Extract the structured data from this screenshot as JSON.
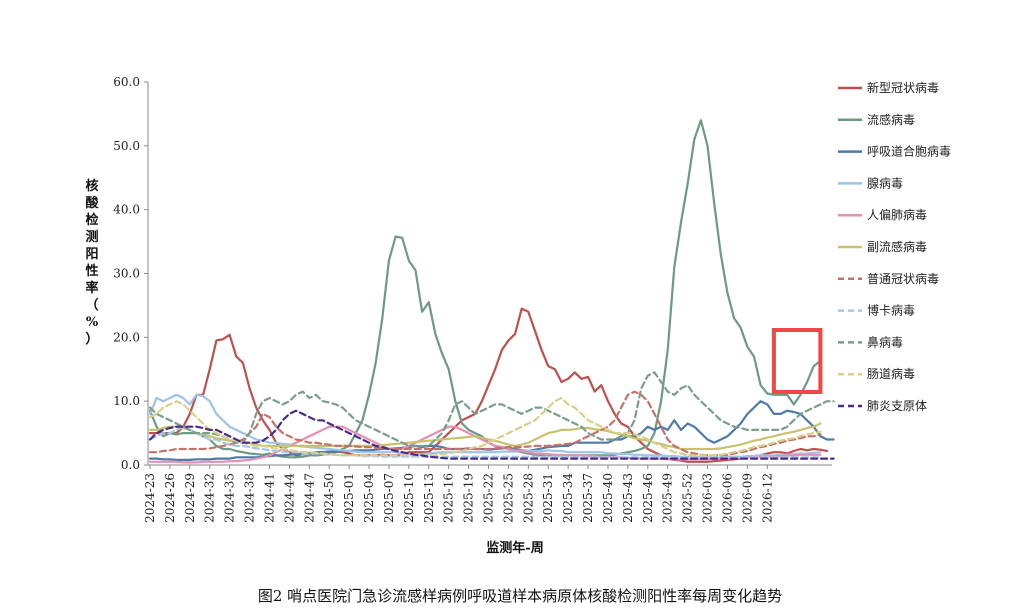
{
  "chart_data": {
    "type": "line",
    "title": "图2  哨点医院门急诊流感样病例呼吸道样本病原体核酸检测阳性率每周变化趋势",
    "xlabel": "监测年-周",
    "ylabel": "核酸检测阳性率（%）",
    "ylim": [
      0,
      60
    ],
    "yticks": [
      "0.0",
      "10.0",
      "20.0",
      "30.0",
      "40.0",
      "50.0",
      "60.0"
    ],
    "x_tick_labels": [
      "2024-23",
      "2024-26",
      "2024-29",
      "2024-32",
      "2024-35",
      "2024-38",
      "2024-41",
      "2024-44",
      "2024-47",
      "2024-50",
      "2025-01",
      "2025-04",
      "2025-07",
      "2025-10",
      "2025-13",
      "2025-16",
      "2025-19",
      "2025-22",
      "2025-25",
      "2025-28",
      "2025-31",
      "2025-34",
      "2025-37",
      "2025-40",
      "2025-43",
      "2025-46",
      "2025-49",
      "2025-52",
      "2026-03",
      "2026-06",
      "2026-09",
      "2026-12"
    ],
    "grid": false,
    "legend_position": "right",
    "highlight_box": {
      "from_week_index": 94,
      "to_week_index": 101,
      "color": "#f04848"
    },
    "series": [
      {
        "name": "新型冠状病毒",
        "color": "#c0504d",
        "dash": "solid",
        "values": [
          5,
          5,
          5,
          5,
          5,
          6,
          8,
          11,
          11,
          15,
          19.5,
          19.7,
          20.4,
          17,
          16,
          12,
          9,
          7,
          5.5,
          3.5,
          2.5,
          2,
          1.5,
          1.3,
          1.5,
          1.8,
          2,
          2.1,
          2.1,
          2,
          1.8,
          1.5,
          1.5,
          1.5,
          1.5,
          1.6,
          1.5,
          1.5,
          1.5,
          2,
          2,
          2,
          2,
          3,
          4,
          5,
          6,
          7,
          7.5,
          8,
          10,
          12.5,
          15,
          18,
          19.5,
          20.5,
          24.5,
          24,
          21,
          18,
          15.5,
          15,
          13,
          13.5,
          14.5,
          13.5,
          13.8,
          11.5,
          12.5,
          10,
          8,
          6.5,
          6,
          4.5,
          3.5,
          2.5,
          2,
          1.5,
          1,
          0.8,
          0.7,
          0.5,
          0.5,
          0.5,
          0.5,
          0.6,
          0.7,
          0.8,
          0.9,
          1,
          1.2,
          1.4,
          1.5,
          1.8,
          2,
          2,
          1.8,
          2.2,
          2.5,
          2.3,
          2.5,
          2.4,
          2.2
        ]
      },
      {
        "name": "流感病毒",
        "color": "#6d9a83",
        "dash": "solid",
        "values": [
          8.5,
          6,
          4.5,
          5,
          4.8,
          5,
          5,
          5,
          4.5,
          4,
          3,
          2.5,
          2.5,
          2.2,
          2,
          1.8,
          1.7,
          1.6,
          1.8,
          1.5,
          1.3,
          1.2,
          1.2,
          1.3,
          1.5,
          1.5,
          1.6,
          1.8,
          2,
          2.5,
          3,
          5,
          7,
          11,
          16,
          23,
          32,
          35.8,
          35.6,
          32,
          30.5,
          24,
          25.5,
          20.5,
          17.5,
          15,
          10,
          6.5,
          5.5,
          5,
          4.5,
          3.5,
          3,
          2.8,
          2.5,
          2.2,
          2,
          1.8,
          1.6,
          1.5,
          1.5,
          1.5,
          1.5,
          1.5,
          1.5,
          1.5,
          1.5,
          1.5,
          1.5,
          1.5,
          1.6,
          1.8,
          2,
          2.2,
          2.5,
          3,
          5,
          10,
          18,
          31,
          38,
          44,
          51,
          54,
          50,
          41,
          33,
          27,
          23,
          21.5,
          18.5,
          17,
          12.5,
          11.2,
          11,
          11,
          11,
          9.5,
          11,
          13,
          15.5,
          16.3
        ]
      },
      {
        "name": "呼吸道合胞病毒",
        "color": "#4f7aa7",
        "dash": "solid",
        "values": [
          1,
          1,
          0.9,
          0.9,
          0.8,
          0.8,
          0.8,
          0.9,
          0.9,
          0.9,
          1,
          1,
          1,
          1.2,
          1.2,
          1.2,
          1.2,
          1.3,
          1.4,
          1.5,
          1.5,
          1.6,
          1.7,
          1.8,
          1.9,
          2,
          2,
          2.1,
          2.1,
          2.2,
          2.2,
          2.3,
          2.3,
          2.3,
          2.4,
          2.5,
          2.5,
          2.6,
          2.7,
          2.8,
          3,
          2.8,
          3,
          3,
          2.8,
          2.5,
          2.5,
          2.5,
          2.6,
          2.5,
          2.5,
          2.4,
          2.5,
          2.6,
          2.7,
          2.5,
          2.3,
          2.2,
          2.4,
          2.6,
          2.8,
          2.9,
          3,
          3,
          3.5,
          3.5,
          3.5,
          3.5,
          3.5,
          3.5,
          4,
          4,
          4.5,
          4.5,
          5,
          6,
          5.5,
          6,
          5.5,
          7,
          5.5,
          6.5,
          6,
          5,
          4,
          3.5,
          4,
          4.5,
          5.5,
          6.5,
          8,
          9,
          10,
          9.5,
          8,
          8,
          8.5,
          8.3,
          8,
          7,
          6,
          4.5,
          4,
          4
        ]
      },
      {
        "name": "腺病毒",
        "color": "#9dc3e6",
        "dash": "solid",
        "values": [
          8,
          10.5,
          10,
          10.5,
          11,
          10.5,
          9.5,
          11,
          10.8,
          10,
          8,
          7,
          6,
          5.5,
          5,
          4.5,
          4,
          3.8,
          3.5,
          3.5,
          3.3,
          3.2,
          3,
          2.9,
          2.8,
          2.7,
          2.6,
          2.5,
          2.4,
          2.3,
          2.2,
          2.1,
          2,
          2,
          2,
          2,
          2,
          2,
          1.8,
          1.7,
          1.6,
          1.7,
          1.8,
          1.9,
          2,
          2,
          2,
          2,
          2,
          2,
          2,
          2,
          2,
          2.1,
          2.1,
          2.1,
          2.2,
          2.2,
          2.2,
          2.2,
          2.3,
          2.2,
          2.2,
          2,
          2,
          2,
          2,
          2,
          2,
          1.8,
          1.8,
          1.7,
          1.7,
          1.6,
          1.6,
          1.5,
          1.5,
          1.5,
          1.4,
          1.4,
          1.3,
          1.3,
          1.3,
          1.2,
          1.2,
          1.2,
          1.2,
          1.3,
          1.3,
          1.3,
          1.4,
          1.4,
          1.5,
          1.5,
          1.5,
          1.6,
          1.6,
          1.7,
          1.8,
          1.8,
          1.9,
          2
        ]
      },
      {
        "name": "人偏肺病毒",
        "color": "#e58fb3",
        "dash": "solid",
        "values": [
          0.5,
          0.5,
          0.5,
          0.5,
          0.5,
          0.4,
          0.4,
          0.4,
          0.5,
          0.5,
          0.5,
          0.5,
          0.6,
          0.6,
          0.7,
          0.8,
          1,
          1.2,
          1.5,
          2,
          2.5,
          3,
          3.5,
          4,
          4.5,
          5,
          5.5,
          6,
          6,
          6,
          5.5,
          5,
          4.5,
          4,
          3.5,
          3,
          2.5,
          2.5,
          2.5,
          3,
          3.5,
          4,
          4.5,
          5,
          5.5,
          6,
          6,
          5.5,
          5,
          4.5,
          4,
          3.5,
          3,
          2.8,
          2.5,
          2.3,
          2.2,
          2,
          1.8,
          1.8,
          1.7,
          1.6,
          1.6,
          1.5,
          1.5,
          1.5,
          1.4,
          1.4,
          1.3,
          1.3,
          1.2,
          1.2,
          1.1,
          1.1,
          1,
          1,
          1,
          1,
          0.9,
          0.9,
          0.9,
          0.9,
          0.9,
          0.9,
          0.9,
          1,
          1,
          1,
          1.1,
          1.1,
          1.2,
          1.2,
          1.3,
          1.3,
          1.4,
          1.4,
          1.5,
          1.5,
          1.6,
          1.6,
          1.6,
          1.6
        ]
      },
      {
        "name": "副流感病毒",
        "color": "#c8c26e",
        "dash": "solid",
        "values": [
          5.5,
          5.5,
          5.8,
          6,
          6,
          5.8,
          5.5,
          5,
          4.8,
          4.5,
          4.2,
          4,
          3.8,
          3.8,
          3.5,
          3.5,
          3.2,
          3,
          3,
          3,
          3,
          3,
          3,
          3,
          3,
          3,
          3,
          3,
          3,
          3,
          3,
          3,
          3,
          3,
          3,
          3.1,
          3.2,
          3.3,
          3.4,
          3.5,
          3.6,
          3.7,
          3.8,
          3.9,
          4,
          4.1,
          4.2,
          4.3,
          4.4,
          4.5,
          4.3,
          4,
          3.8,
          3.5,
          3.2,
          3,
          3.2,
          3.5,
          4,
          4.5,
          5,
          5.2,
          5.5,
          5.5,
          5.6,
          5.8,
          5.8,
          5.6,
          5.5,
          5.3,
          5,
          4.8,
          4.5,
          4.2,
          4,
          3.8,
          3.5,
          3.3,
          3,
          2.8,
          2.5,
          2.5,
          2.5,
          2.5,
          2.5,
          2.5,
          2.6,
          2.8,
          3,
          3.2,
          3.5,
          3.8,
          4,
          4.3,
          4.5,
          4.8,
          5,
          5.2,
          5.5,
          5.8,
          6,
          6.5
        ]
      },
      {
        "name": "普通冠状病毒",
        "color": "#c8706a",
        "dash": "dashed",
        "values": [
          2,
          2,
          2.2,
          2.3,
          2.5,
          2.5,
          2.5,
          2.5,
          2.5,
          2.6,
          2.8,
          3,
          3.2,
          3.5,
          4,
          5,
          6,
          8,
          7.5,
          6,
          5,
          4.5,
          4,
          3.8,
          3.5,
          3.5,
          3.3,
          3.2,
          3,
          3,
          3,
          2.9,
          2.8,
          2.8,
          2.7,
          2.6,
          2.5,
          2.5,
          2.5,
          2.5,
          2.5,
          2.5,
          2.5,
          2.5,
          2.5,
          2.5,
          2.5,
          2.5,
          2.5,
          2.5,
          2.5,
          2.5,
          2.6,
          2.7,
          2.8,
          2.8,
          2.8,
          2.9,
          3,
          3,
          3,
          3.1,
          3.2,
          3.3,
          3.5,
          4,
          4.5,
          5,
          5.5,
          6,
          7,
          9,
          11,
          11.5,
          11,
          10,
          8,
          6,
          4,
          3,
          2.5,
          2,
          1.8,
          1.6,
          1.5,
          1.5,
          1.5,
          1.6,
          1.8,
          2,
          2.2,
          2.5,
          2.8,
          3,
          3.3,
          3.5,
          3.8,
          4,
          4.2,
          4.5,
          4.5,
          4.8
        ]
      },
      {
        "name": "博卡病毒",
        "color": "#a6c8e8",
        "dash": "dashed",
        "values": [
          4,
          4.5,
          5,
          5,
          5.5,
          6,
          5.5,
          5,
          4.5,
          4,
          4,
          3.5,
          3.2,
          3,
          3,
          2.8,
          2.6,
          2.5,
          2.3,
          2.2,
          2,
          2,
          2,
          1.9,
          1.8,
          1.8,
          1.7,
          1.6,
          1.6,
          1.5,
          1.5,
          1.5,
          1.4,
          1.4,
          1.4,
          1.3,
          1.3,
          1.3,
          1.3,
          1.3,
          1.3,
          1.3,
          1.3,
          1.3,
          1.3,
          1.3,
          1.3,
          1.3,
          1.3,
          1.3,
          1.3,
          1.3,
          1.3,
          1.3,
          1.3,
          1.3,
          1.3,
          1.3,
          1.3,
          1.3,
          1.3,
          1.3,
          1.3,
          1.2,
          1.2,
          1.2,
          1.2,
          1.2,
          1.2,
          1.2,
          1.2,
          1.2,
          1.2,
          1.2,
          1.2,
          1.2,
          1.2,
          1.2,
          1.2,
          1.2,
          1.2,
          1.2,
          1.2,
          1.2,
          1.2,
          1.2,
          1.2,
          1.2,
          1.2,
          1.2,
          1.2,
          1.2,
          1.2,
          1.2,
          1.2,
          1.2,
          1.2,
          1.2,
          1.2,
          1.2,
          1.2,
          1.2
        ]
      },
      {
        "name": "鼻病毒",
        "color": "#7a9e8a",
        "dash": "dashed",
        "values": [
          9,
          8,
          7.5,
          7,
          6.5,
          6,
          5.5,
          5,
          5,
          5,
          4.8,
          4.5,
          4,
          3.5,
          3.5,
          5,
          8,
          10,
          10.5,
          10,
          9.5,
          10,
          11,
          11.5,
          10.5,
          11,
          10,
          9.8,
          9.5,
          9,
          8,
          7,
          6.5,
          6,
          5.5,
          5,
          4.5,
          4,
          3.5,
          3,
          3,
          3,
          3,
          4,
          5,
          7,
          9.5,
          10,
          9,
          8,
          8.5,
          9,
          9.5,
          9.5,
          9,
          8.5,
          8,
          8.5,
          9,
          9,
          8.5,
          8,
          7.5,
          7,
          6.5,
          6,
          5,
          4.5,
          4,
          4,
          4,
          4.5,
          5,
          7,
          12,
          14,
          14.5,
          13,
          11.5,
          11,
          12,
          12.5,
          11,
          10,
          9,
          8,
          7,
          6.5,
          6,
          5.8,
          5.5,
          5.5,
          5.5,
          5.5,
          5.5,
          5.5,
          6,
          7,
          8,
          8.5,
          9,
          9.5,
          10,
          10
        ]
      },
      {
        "name": "肠道病毒",
        "color": "#d8d08a",
        "dash": "dashed",
        "values": [
          7.5,
          8,
          9,
          9.5,
          10,
          9.5,
          8.5,
          7.5,
          6.5,
          5.5,
          5,
          4.5,
          4,
          3.8,
          3.5,
          3.2,
          3,
          3,
          2.8,
          2.6,
          2.5,
          2.3,
          2.2,
          2,
          2,
          1.9,
          1.8,
          1.7,
          1.6,
          1.5,
          1.5,
          1.5,
          1.5,
          1.5,
          1.5,
          1.5,
          1.5,
          1.5,
          1.5,
          1.5,
          1.5,
          1.5,
          1.5,
          1.6,
          1.7,
          1.8,
          2,
          2.2,
          2.5,
          2.8,
          3,
          3.5,
          4,
          4.5,
          5,
          5.5,
          6,
          6.5,
          7,
          8,
          9,
          10,
          10.5,
          9.5,
          9,
          8,
          7,
          6.5,
          6,
          5.5,
          5,
          5,
          5,
          4.8,
          4.5,
          4,
          3.5,
          3,
          2.5,
          2,
          1.8,
          1.6,
          1.5,
          1.5,
          1.5,
          1.5,
          1.6,
          1.8,
          2,
          2.2,
          2.5,
          2.8,
          3,
          3.2,
          3.5,
          3.8,
          4,
          4.2,
          4.5,
          4.8,
          5,
          5.2
        ]
      },
      {
        "name": "肺炎支原体",
        "color": "#4b2a8c",
        "dash": "dashed",
        "values": [
          4,
          5,
          5.5,
          5.8,
          6,
          6,
          6,
          6,
          5.8,
          5.5,
          5.5,
          5,
          4.5,
          4,
          3.5,
          3.5,
          3.5,
          3.8,
          4.5,
          5.5,
          7,
          8,
          8.5,
          8,
          7.5,
          7,
          7,
          6.5,
          6,
          5.5,
          5,
          4.5,
          4,
          3.5,
          3,
          2.8,
          2.5,
          2.2,
          2,
          1.8,
          1.6,
          1.5,
          1.3,
          1.2,
          1.1,
          1,
          1,
          1,
          1,
          1,
          1,
          1,
          1,
          1,
          1,
          1,
          1,
          1,
          1,
          1,
          1,
          1,
          1,
          1,
          1,
          1,
          1,
          1,
          1,
          1,
          1,
          1,
          1,
          1,
          1,
          1,
          1,
          1,
          1,
          1,
          1,
          1,
          1,
          1,
          1,
          1,
          1,
          1,
          1,
          1,
          1,
          1,
          1,
          1,
          1,
          1,
          1,
          1,
          1,
          1,
          1,
          1,
          1,
          1
        ]
      }
    ]
  }
}
